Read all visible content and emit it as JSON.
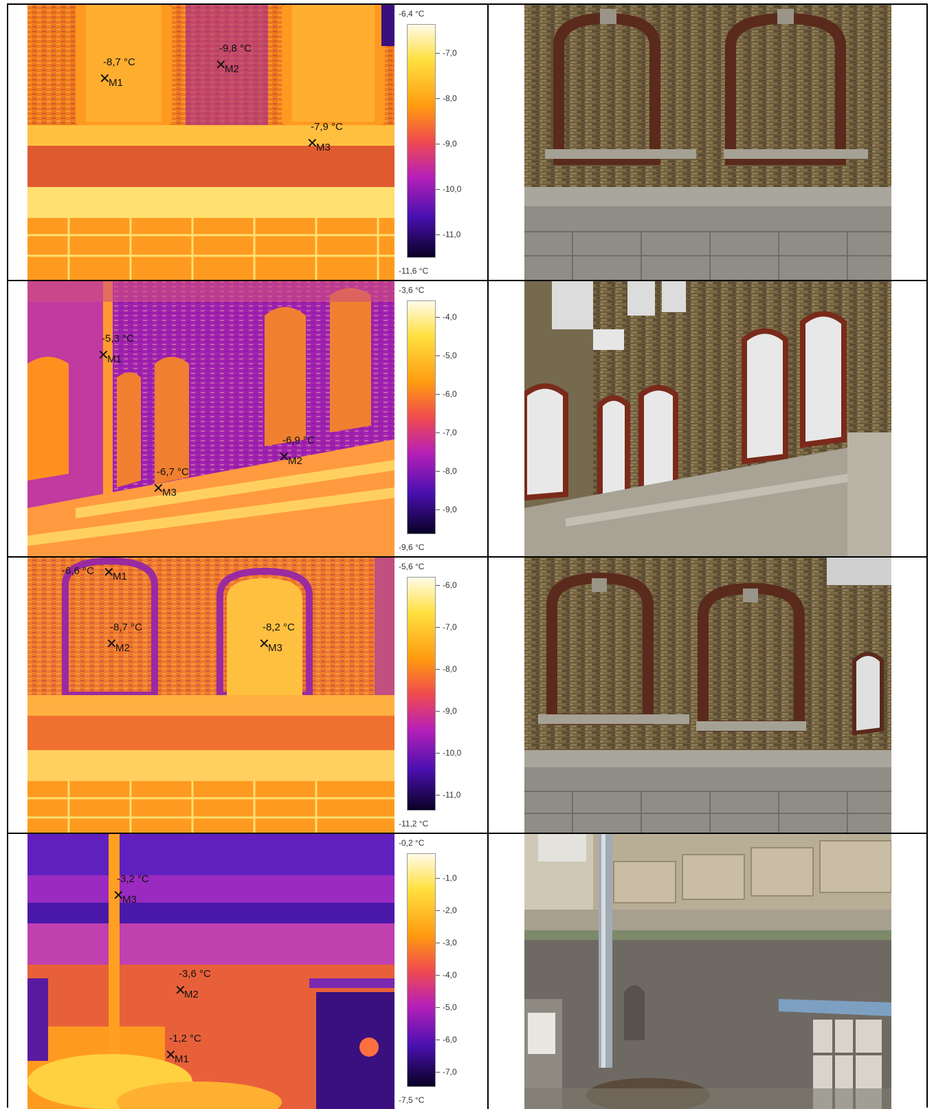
{
  "rows": [
    {
      "scale_max": "-6,4 °C",
      "scale_min": "-11,6 °C",
      "ticks": [
        "-7,0",
        "-8,0",
        "-9,0",
        "-10,0",
        "-11,0"
      ],
      "markers": [
        {
          "id": "M1",
          "temp": "-8,7 °C"
        },
        {
          "id": "M2",
          "temp": "-9,8 °C"
        },
        {
          "id": "M3",
          "temp": "-7,9 °C"
        }
      ]
    },
    {
      "scale_max": "-3,6 °C",
      "scale_min": "-9,6 °C",
      "ticks": [
        "-4,0",
        "-5,0",
        "-6,0",
        "-7,0",
        "-8,0",
        "-9,0"
      ],
      "markers": [
        {
          "id": "M1",
          "temp": "-5,3 °C"
        },
        {
          "id": "M2",
          "temp": "-6,9 °C"
        },
        {
          "id": "M3",
          "temp": "-6,7 °C"
        }
      ]
    },
    {
      "scale_max": "-5,6 °C",
      "scale_min": "-11,2 °C",
      "ticks": [
        "-6,0",
        "-7,0",
        "-8,0",
        "-9,0",
        "-10,0",
        "-11,0"
      ],
      "markers": [
        {
          "id": "M1",
          "temp": "-6,6 °C"
        },
        {
          "id": "M2",
          "temp": "-8,7 °C"
        },
        {
          "id": "M3",
          "temp": "-8,2 °C"
        }
      ]
    },
    {
      "scale_max": "-0,2 °C",
      "scale_min": "-7,5 °C",
      "ticks": [
        "-1,0",
        "-2,0",
        "-3,0",
        "-4,0",
        "-5,0",
        "-6,0",
        "-7,0"
      ],
      "markers": [
        {
          "id": "M1",
          "temp": "-1,2 °C"
        },
        {
          "id": "M2",
          "temp": "-3,6 °C"
        },
        {
          "id": "M3",
          "temp": "-3,2 °C"
        }
      ]
    }
  ]
}
